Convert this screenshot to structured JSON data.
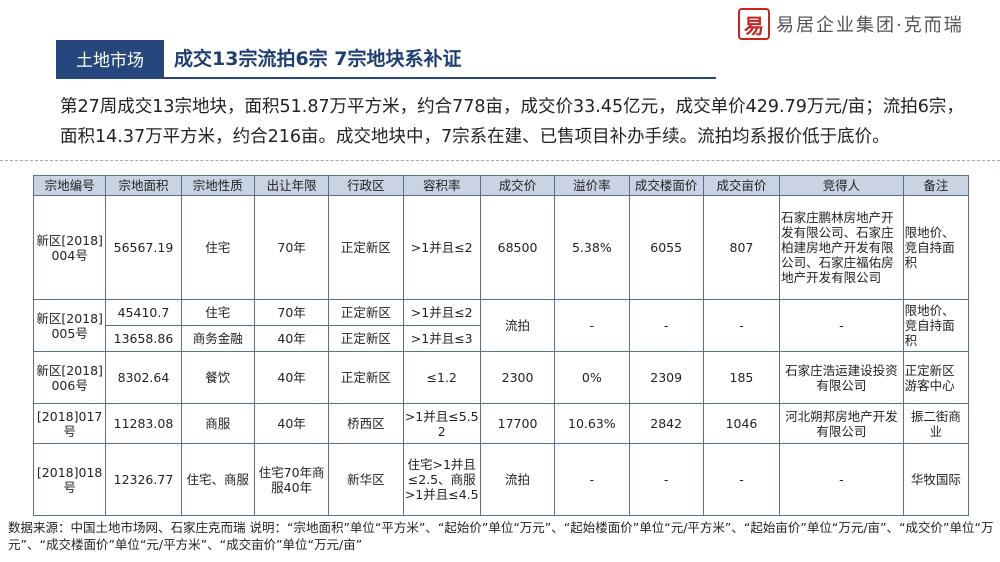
{
  "brand": {
    "seal_char": "易",
    "text": "易居企业集团·克而瑞"
  },
  "header": {
    "tag": "土地市场",
    "title": "成交13宗流拍6宗 7宗地块系补证"
  },
  "summary": "第27周成交13宗地块，面积51.87万平方米，约合778亩，成交价33.45亿元，成交单价429.79万元/亩；流拍6宗，面积14.37万平方米，约合216亩。成交地块中，7宗系在建、已售项目补办手续。流拍均系报价低于底价。",
  "table": {
    "headers": [
      "宗地编号",
      "宗地面积",
      "宗地性质",
      "出让年限",
      "行政区",
      "容积率",
      "成交价",
      "溢价率",
      "成交楼面价",
      "成交亩价",
      "竞得人",
      "备注"
    ],
    "rows": [
      {
        "code": "新区[2018]004号",
        "area": "56567.19",
        "nature": "住宅",
        "years": "70年",
        "district": "正定新区",
        "far": ">1并且≤2",
        "price": "68500",
        "premium": "5.38%",
        "floor_price": "6055",
        "mu_price": "807",
        "winner": "石家庄鹏林房地产开发有限公司、石家庄柏建房地产开发有限公司、石家庄福佑房地产开发有限公司",
        "note": "限地价、竞自持面积"
      },
      {
        "code": "新区[2018]005号",
        "parcels": [
          {
            "area": "45410.7",
            "nature": "住宅",
            "years": "70年",
            "district": "正定新区",
            "far": ">1并且≤2"
          },
          {
            "area": "13658.86",
            "nature": "商务金融",
            "years": "40年",
            "district": "正定新区",
            "far": ">1并且≤3"
          }
        ],
        "price": "流拍",
        "premium": "-",
        "floor_price": "-",
        "mu_price": "-",
        "winner": "-",
        "note": "限地价、竞自持面积"
      },
      {
        "code": "新区[2018]006号",
        "area": "8302.64",
        "nature": "餐饮",
        "years": "40年",
        "district": "正定新区",
        "far": "≤1.2",
        "price": "2300",
        "premium": "0%",
        "floor_price": "2309",
        "mu_price": "185",
        "winner": "石家庄浩运建设投资有限公司",
        "note": "正定新区游客中心"
      },
      {
        "code": "[2018]017号",
        "area": "11283.08",
        "nature": "商服",
        "years": "40年",
        "district": "桥西区",
        "far": ">1并且≤5.52",
        "price": "17700",
        "premium": "10.63%",
        "floor_price": "2842",
        "mu_price": "1046",
        "winner": "河北朔邦房地产开发有限公司",
        "note": "振二街商业"
      },
      {
        "code": "[2018]018号",
        "area": "12326.77",
        "nature": "住宅、商服",
        "years": "住宅70年商服40年",
        "district": "新华区",
        "far": "住宅>1并且≤2.5、商服>1并且≤4.5",
        "price": "流拍",
        "premium": "-",
        "floor_price": "-",
        "mu_price": "-",
        "winner": "-",
        "note": "华牧国际"
      }
    ]
  },
  "source_note": "数据来源：中国土地市场网、石家庄克而瑞 说明：“宗地面积”单位“平方米”、“起始价”单位“万元”、“起始楼面价”单位“元/平方米”、“起始亩价”单位“万元/亩”、“成交价”单位“万元”、“成交楼面价”单位“元/平方米”、“成交亩价”单位“万元/亩”",
  "colors": {
    "accent": "#25477d",
    "header_fill": "#c9d3e4",
    "brand_red": "#c8231c"
  }
}
